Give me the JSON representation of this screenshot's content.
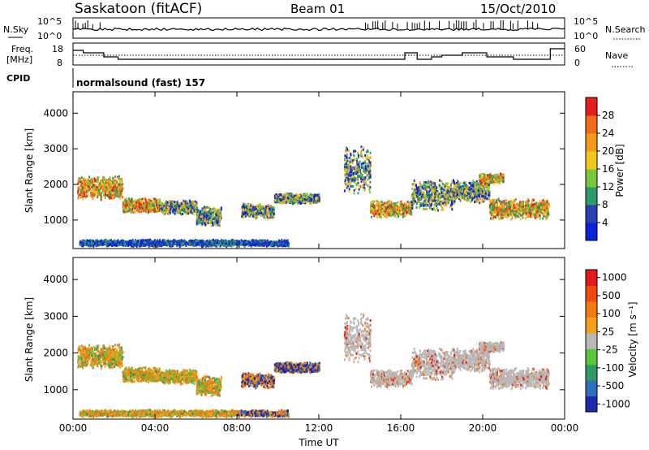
{
  "header": {
    "station": "Saskatoon (fitACF)",
    "beam": "Beam 01",
    "date": "15/Oct/2010"
  },
  "noise_panel": {
    "left_label": "N.Sky",
    "right_label": "N.Search",
    "left_ticks": [
      "10^5",
      "10^0"
    ],
    "right_ticks": [
      "10^5",
      "10^0"
    ]
  },
  "freq_panel": {
    "left_label_1": "Freq.",
    "left_label_2": "[MHz]",
    "right_label": "Nave",
    "left_ticks": [
      "18",
      "8"
    ],
    "right_ticks": [
      "60",
      "0"
    ]
  },
  "cpid": {
    "label": "CPID",
    "value": "normalsound (fast) 157"
  },
  "chart_data": [
    {
      "type": "heatmap",
      "ylabel": "Slant Range [km]",
      "xlim": [
        0,
        24
      ],
      "ylim": [
        200,
        4600
      ],
      "yticks": [
        "1000",
        "2000",
        "3000",
        "4000"
      ],
      "colorbar": {
        "label": "Power [dB]",
        "ticks": [
          "4",
          "8",
          "12",
          "16",
          "20",
          "24",
          "28"
        ],
        "colors": [
          "#0a22dc",
          "#2a3fb2",
          "#2c9a6a",
          "#78c83a",
          "#f2c81e",
          "#f59a1a",
          "#f26a1a",
          "#e61e1e"
        ]
      }
    },
    {
      "type": "heatmap",
      "ylabel": "Slant Range [km]",
      "xlabel": "Time UT",
      "xlim": [
        0,
        24
      ],
      "ylim": [
        200,
        4600
      ],
      "yticks": [
        "1000",
        "2000",
        "3000",
        "4000"
      ],
      "xticks": [
        "00:00",
        "04:00",
        "08:00",
        "12:00",
        "16:00",
        "20:00",
        "00:00"
      ],
      "colorbar": {
        "label": "Velocity [m s⁻¹]",
        "ticks": [
          "1000",
          "500",
          "100",
          "25",
          "-25",
          "-100",
          "-500",
          "-1000"
        ],
        "colors": [
          "#1a2aa8",
          "#2f6eb8",
          "#2f9a68",
          "#58c83a",
          "#b8b8b8",
          "#f5a01a",
          "#f27a10",
          "#ef4a10",
          "#e61a1a"
        ]
      }
    }
  ]
}
